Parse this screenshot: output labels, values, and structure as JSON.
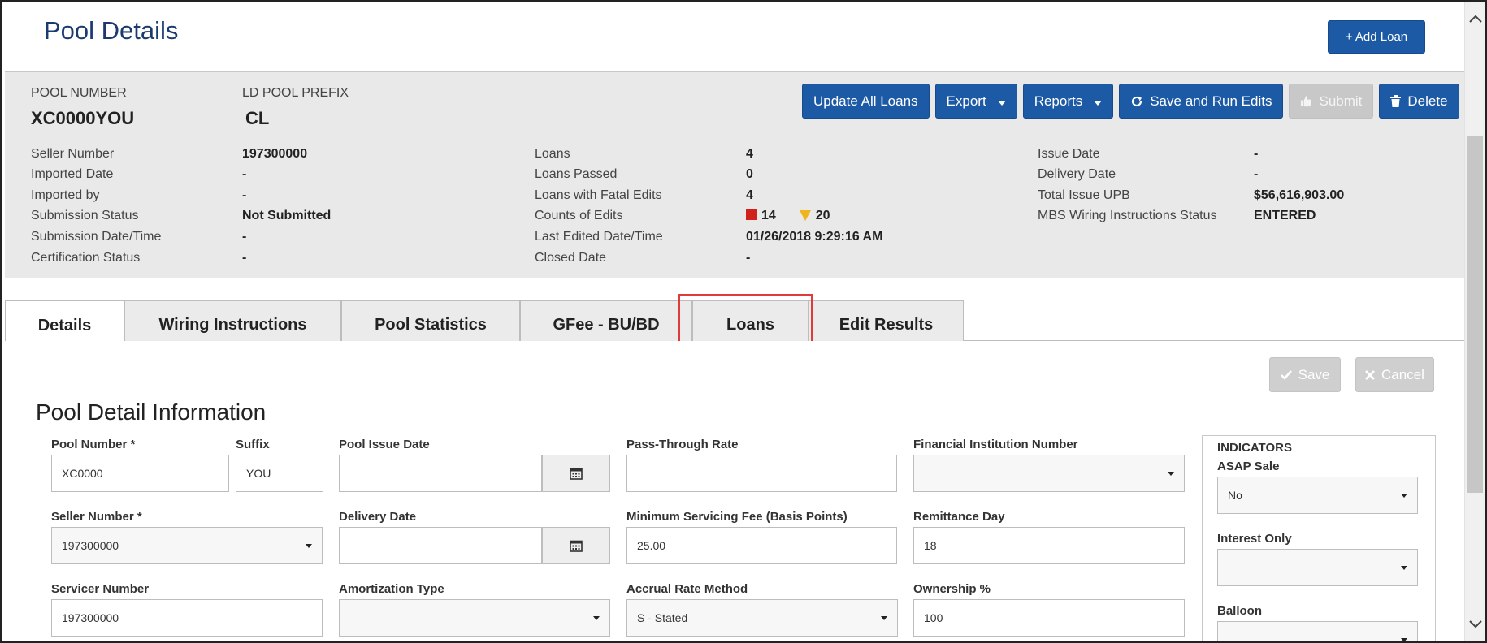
{
  "header": {
    "title": "Pool Details",
    "add_loan_label": "+ Add Loan"
  },
  "summary": {
    "pool_number_label": "POOL NUMBER",
    "pool_number_value": "XC0000YOU",
    "ld_prefix_label": "LD POOL PREFIX",
    "ld_prefix_value": "CL",
    "toolbar": {
      "update_all": "Update All Loans",
      "export": "Export",
      "reports": "Reports",
      "save_run": "Save and Run Edits",
      "submit": "Submit",
      "delete": "Delete"
    },
    "col1": [
      {
        "label": "Seller Number",
        "value": "197300000"
      },
      {
        "label": "Imported Date",
        "value": "-"
      },
      {
        "label": "Imported by",
        "value": "-"
      },
      {
        "label": "Submission Status",
        "value": "Not Submitted"
      },
      {
        "label": "Submission Date/Time",
        "value": "-"
      },
      {
        "label": "Certification Status",
        "value": "-"
      }
    ],
    "col2": [
      {
        "label": "Loans",
        "value": "4"
      },
      {
        "label": "Loans Passed",
        "value": "0"
      },
      {
        "label": "Loans with Fatal Edits",
        "value": "4"
      },
      {
        "label": "Counts of Edits",
        "fatal_count": "14",
        "warning_count": "20"
      },
      {
        "label": "Last Edited Date/Time",
        "value": "01/26/2018 9:29:16 AM"
      },
      {
        "label": "Closed Date",
        "value": "-"
      }
    ],
    "col3": [
      {
        "label": "Issue Date",
        "value": "-"
      },
      {
        "label": "Delivery Date",
        "value": "-"
      },
      {
        "label": "Total Issue UPB",
        "value": "$56,616,903.00"
      },
      {
        "label": "MBS Wiring Instructions Status",
        "value": "ENTERED"
      }
    ],
    "colors": {
      "fatal": "#d0211c",
      "warning": "#f0b41c"
    }
  },
  "tabs": [
    {
      "label": "Details",
      "active": true
    },
    {
      "label": "Wiring Instructions"
    },
    {
      "label": "Pool Statistics"
    },
    {
      "label": "GFee - BU/BD"
    },
    {
      "label": "Loans",
      "highlighted": true
    },
    {
      "label": "Edit Results"
    }
  ],
  "details": {
    "section_title": "Pool Detail Information",
    "save_label": "Save",
    "cancel_label": "Cancel",
    "fields": {
      "pool_number_label": "Pool Number *",
      "pool_number_value": "XC0000",
      "suffix_label": "Suffix",
      "suffix_value": "YOU",
      "pool_issue_date_label": "Pool Issue Date",
      "pool_issue_date_value": "",
      "pass_through_label": "Pass-Through Rate",
      "pass_through_value": "",
      "fin_inst_label": "Financial Institution Number",
      "fin_inst_value": "",
      "seller_number_label": "Seller Number *",
      "seller_number_value": "197300000",
      "delivery_date_label": "Delivery Date",
      "delivery_date_value": "",
      "min_serv_fee_label": "Minimum Servicing Fee (Basis Points)",
      "min_serv_fee_value": "25.00",
      "remittance_day_label": "Remittance Day",
      "remittance_day_value": "18",
      "servicer_number_label": "Servicer Number",
      "servicer_number_value": "197300000",
      "amortization_label": "Amortization Type",
      "amortization_value": "",
      "accrual_label": "Accrual Rate Method",
      "accrual_value": "S - Stated",
      "ownership_label": "Ownership %",
      "ownership_value": "100"
    },
    "indicators": {
      "title": "INDICATORS",
      "asap_label": "ASAP Sale",
      "asap_value": "No",
      "interest_only_label": "Interest Only",
      "interest_only_value": "",
      "balloon_label": "Balloon",
      "balloon_value": ""
    }
  }
}
